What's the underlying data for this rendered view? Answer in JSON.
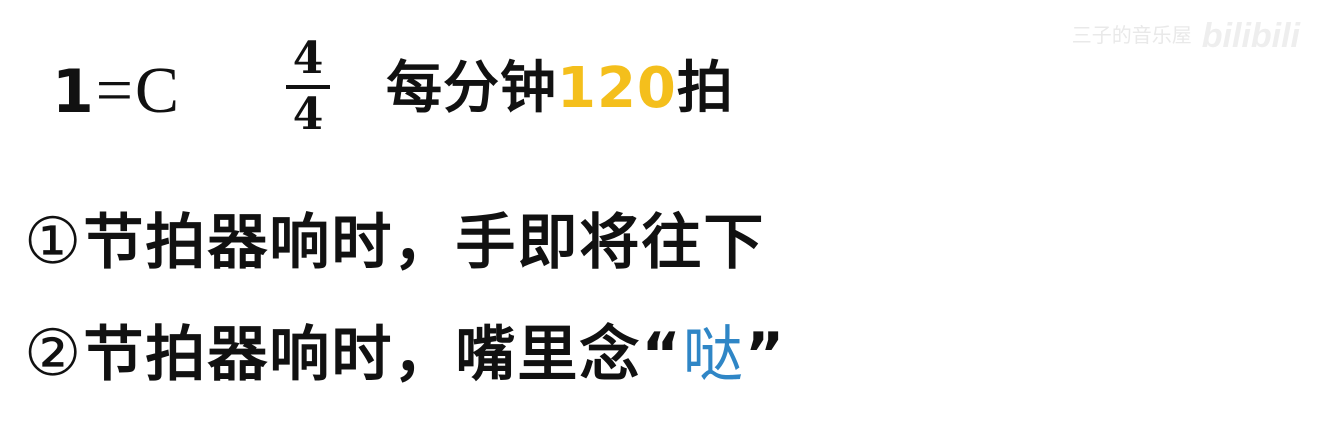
{
  "header": {
    "key_one": "1",
    "key_rest": "=C",
    "time_signature": {
      "numerator": "4",
      "denominator": "4"
    },
    "tempo_prefix": "每分钟",
    "tempo_bpm": "120",
    "tempo_suffix": "拍"
  },
  "steps": [
    {
      "marker": "①",
      "text": "节拍器响时，手即将往下"
    },
    {
      "marker": "②",
      "text": "节拍器响时，嘴里念",
      "open_quote": "“",
      "quoted_word": "哒",
      "close_quote": "”"
    }
  ],
  "watermark": {
    "user": "三子的音乐屋",
    "logo": "bilibili"
  },
  "colors": {
    "bpm_highlight": "#f4bf1c",
    "quoted_word": "#2f86c6",
    "text": "#111111"
  }
}
